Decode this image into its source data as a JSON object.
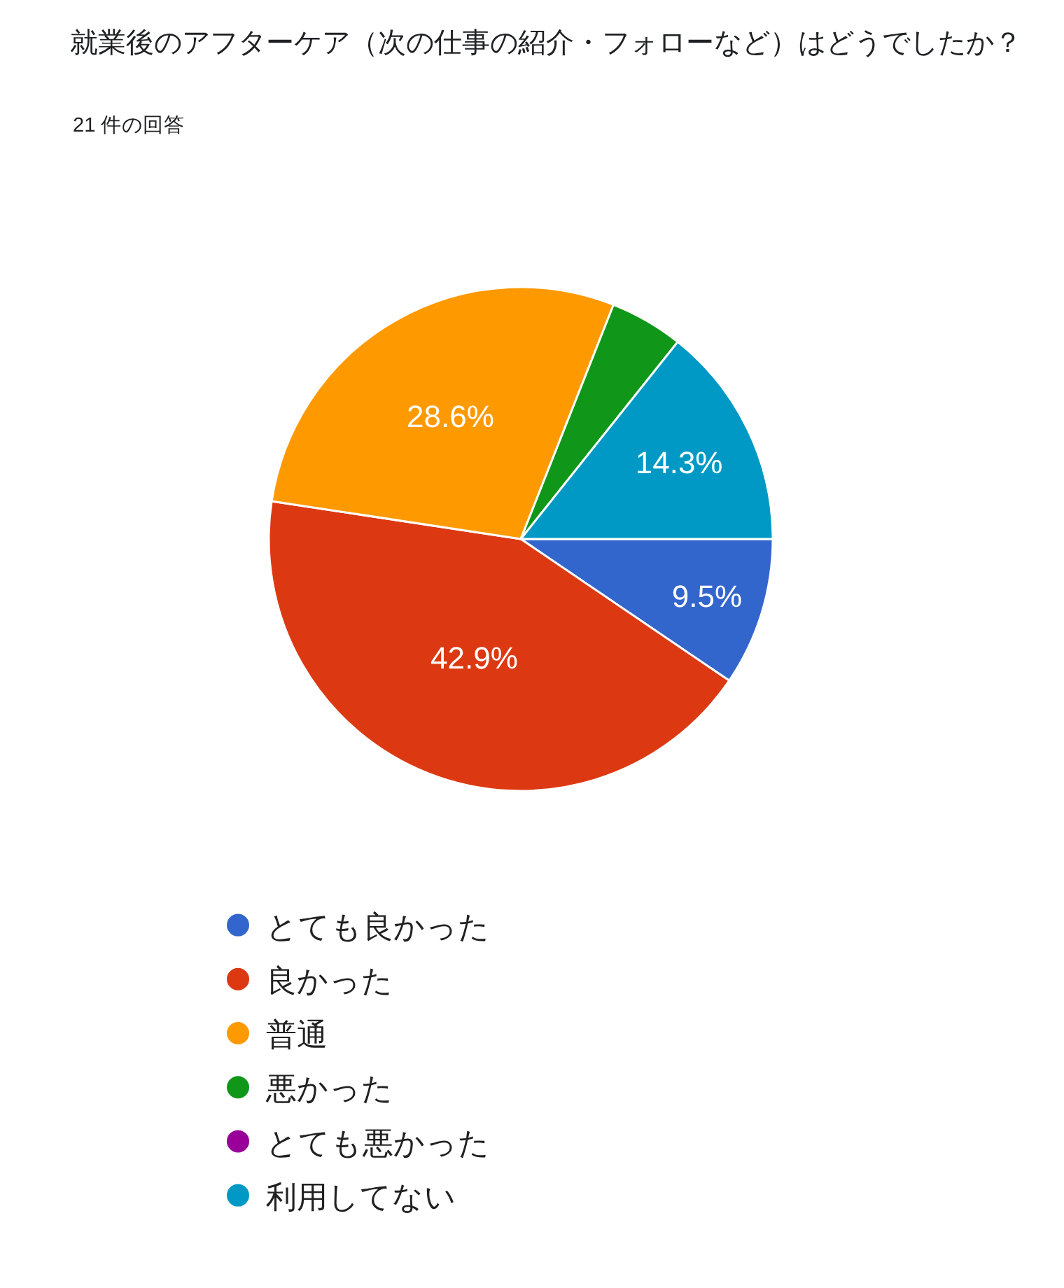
{
  "chart_data": {
    "type": "pie",
    "title": "就業後のアフターケア（次の仕事の紹介・フォローなど）はどうでしたか？",
    "subtitle": "21 件の回答",
    "categories": [
      "とても良かった",
      "良かった",
      "普通",
      "悪かった",
      "とても悪かった",
      "利用してない"
    ],
    "values": [
      9.5,
      42.9,
      28.6,
      4.7,
      0,
      14.3
    ],
    "value_labels": [
      "9.5%",
      "42.9%",
      "28.6%",
      null,
      null,
      "14.3%"
    ],
    "colors": [
      "#3366cc",
      "#dc3912",
      "#ff9900",
      "#109618",
      "#990099",
      "#0099c6"
    ],
    "legend": "bottom"
  }
}
